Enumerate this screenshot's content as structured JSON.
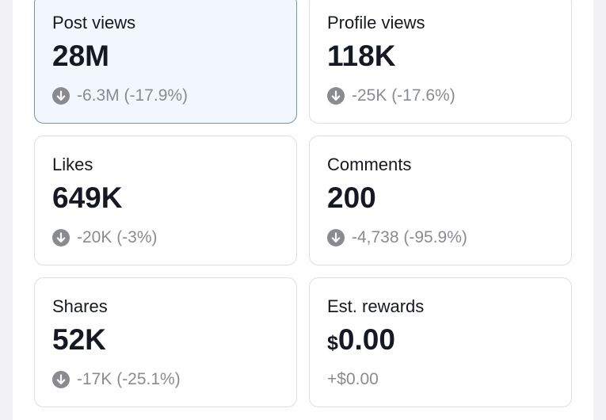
{
  "stats": [
    {
      "label": "Post views",
      "value": "28M",
      "change": "-6.3M (-17.9%)",
      "direction": "down",
      "icon": "down-arrow-circle-icon",
      "selected": true
    },
    {
      "label": "Profile views",
      "value": "118K",
      "change": "-25K (-17.6%)",
      "direction": "down",
      "icon": "down-arrow-circle-icon",
      "selected": false
    },
    {
      "label": "Likes",
      "value": "649K",
      "change": "-20K (-3%)",
      "direction": "down",
      "icon": "down-arrow-circle-icon",
      "selected": false
    },
    {
      "label": "Comments",
      "value": "200",
      "change": "-4,738 (-95.9%)",
      "direction": "down",
      "icon": "down-arrow-circle-icon",
      "selected": false
    },
    {
      "label": "Shares",
      "value": "52K",
      "change": "-17K (-25.1%)",
      "direction": "down",
      "icon": "down-arrow-circle-icon",
      "selected": false
    },
    {
      "label": "Est. rewards",
      "value_currency": "$",
      "value": "0.00",
      "change": "+$0.00",
      "direction": "none",
      "selected": false
    }
  ],
  "colors": {
    "selected_background": "#f2f7fd",
    "selected_border": "#6d97bd",
    "text_primary": "#161823",
    "text_secondary": "#8a8b91",
    "icon_gray": "#8a8b91"
  }
}
